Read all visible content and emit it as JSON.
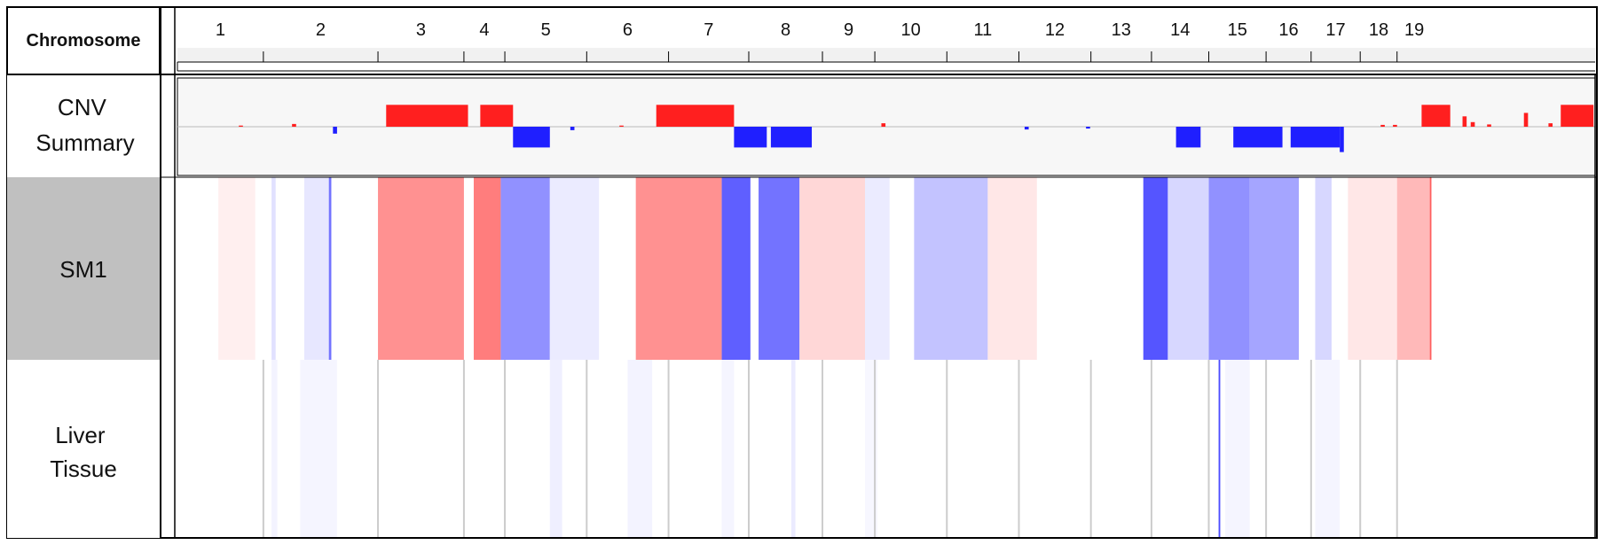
{
  "chart_data": {
    "type": "heatmap",
    "x_axis_title": "Chromosome",
    "chromosomes": [
      {
        "label": "1",
        "start": 0,
        "end": 1.05
      },
      {
        "label": "2",
        "start": 1.05,
        "end": 2.45
      },
      {
        "label": "3",
        "start": 2.45,
        "end": 3.5
      },
      {
        "label": "4",
        "start": 3.5,
        "end": 4.0
      },
      {
        "label": "5",
        "start": 4.0,
        "end": 5.0
      },
      {
        "label": "6",
        "start": 5.0,
        "end": 6.0
      },
      {
        "label": "7",
        "start": 6.0,
        "end": 6.98
      },
      {
        "label": "8",
        "start": 6.98,
        "end": 7.88
      },
      {
        "label": "9",
        "start": 7.88,
        "end": 8.52
      },
      {
        "label": "10",
        "start": 8.52,
        "end": 9.4
      },
      {
        "label": "11",
        "start": 9.4,
        "end": 10.28
      },
      {
        "label": "12",
        "start": 10.28,
        "end": 11.16
      },
      {
        "label": "13",
        "start": 11.16,
        "end": 11.9
      },
      {
        "label": "14",
        "start": 11.9,
        "end": 12.6
      },
      {
        "label": "15",
        "start": 12.6,
        "end": 13.3
      },
      {
        "label": "16",
        "start": 13.3,
        "end": 13.85
      },
      {
        "label": "17",
        "start": 13.85,
        "end": 14.45
      },
      {
        "label": "18",
        "start": 14.45,
        "end": 14.9
      },
      {
        "label": "19",
        "start": 14.9,
        "end": 15.32
      }
    ],
    "genome_range": [
      0,
      15.32
    ],
    "tracks": [
      {
        "name": "CNV\nSummary",
        "kind": "cnv",
        "highlighted": false
      },
      {
        "name": "SM1",
        "kind": "heatmap",
        "highlighted": true
      },
      {
        "name": "Liver\nTissue",
        "kind": "heatmap",
        "highlighted": false
      }
    ],
    "cnv_ylim": [
      -1,
      1
    ],
    "cnv_summary": [
      {
        "start": 0.75,
        "end": 0.8,
        "value": 0.05
      },
      {
        "start": 1.4,
        "end": 1.45,
        "value": 0.12
      },
      {
        "start": 1.9,
        "end": 1.95,
        "value": -0.3
      },
      {
        "start": 2.55,
        "end": 3.55,
        "value": 0.95
      },
      {
        "start": 3.7,
        "end": 4.1,
        "value": 0.95
      },
      {
        "start": 4.1,
        "end": 4.55,
        "value": -0.9
      },
      {
        "start": 4.8,
        "end": 4.85,
        "value": -0.15
      },
      {
        "start": 5.4,
        "end": 5.45,
        "value": 0.05
      },
      {
        "start": 5.85,
        "end": 6.8,
        "value": 0.95
      },
      {
        "start": 6.8,
        "end": 7.2,
        "value": -0.9
      },
      {
        "start": 7.25,
        "end": 7.75,
        "value": -0.9
      },
      {
        "start": 8.6,
        "end": 8.65,
        "value": 0.15
      },
      {
        "start": 10.35,
        "end": 10.4,
        "value": -0.12
      },
      {
        "start": 11.1,
        "end": 11.15,
        "value": -0.08
      },
      {
        "start": 12.2,
        "end": 12.5,
        "value": -0.9
      },
      {
        "start": 12.9,
        "end": 13.5,
        "value": -0.9
      },
      {
        "start": 13.6,
        "end": 14.2,
        "value": -0.9
      },
      {
        "start": 14.2,
        "end": 14.25,
        "value": -1.1
      },
      {
        "start": 14.7,
        "end": 14.75,
        "value": 0.08
      },
      {
        "start": 14.85,
        "end": 14.9,
        "value": 0.08
      },
      {
        "start": 15.2,
        "end": 15.55,
        "value": 0.95
      },
      {
        "start": 15.7,
        "end": 15.75,
        "value": 0.45
      },
      {
        "start": 15.8,
        "end": 15.85,
        "value": 0.2
      },
      {
        "start": 16.0,
        "end": 16.05,
        "value": 0.1
      },
      {
        "start": 16.45,
        "end": 16.5,
        "value": 0.6
      },
      {
        "start": 16.75,
        "end": 16.8,
        "value": 0.15
      },
      {
        "start": 16.9,
        "end": 17.3,
        "value": 0.95
      }
    ],
    "colors": {
      "gain": "#ff1f1f",
      "loss": "#1f1fff",
      "label_highlight": "#c0c0c0",
      "grid": "#cccccc"
    },
    "sm1": [
      {
        "start": 0.5,
        "end": 0.95,
        "value": 0.08
      },
      {
        "start": 1.15,
        "end": 1.2,
        "value": -0.15
      },
      {
        "start": 1.55,
        "end": 1.85,
        "value": -0.12
      },
      {
        "start": 1.85,
        "end": 1.88,
        "value": -0.7
      },
      {
        "start": 2.45,
        "end": 3.5,
        "value": 0.55
      },
      {
        "start": 3.62,
        "end": 3.95,
        "value": 0.65
      },
      {
        "start": 3.95,
        "end": 4.55,
        "value": -0.55
      },
      {
        "start": 4.55,
        "end": 5.15,
        "value": -0.1
      },
      {
        "start": 5.6,
        "end": 6.65,
        "value": 0.55
      },
      {
        "start": 6.65,
        "end": 7.0,
        "value": -0.8
      },
      {
        "start": 7.1,
        "end": 7.6,
        "value": -0.7
      },
      {
        "start": 7.6,
        "end": 8.4,
        "value": 0.2
      },
      {
        "start": 8.4,
        "end": 8.7,
        "value": -0.1
      },
      {
        "start": 9.0,
        "end": 9.9,
        "value": -0.3
      },
      {
        "start": 9.9,
        "end": 10.5,
        "value": 0.12
      },
      {
        "start": 11.8,
        "end": 12.1,
        "value": -0.85
      },
      {
        "start": 12.1,
        "end": 12.6,
        "value": -0.2
      },
      {
        "start": 12.6,
        "end": 13.1,
        "value": -0.55
      },
      {
        "start": 13.1,
        "end": 13.7,
        "value": -0.45
      },
      {
        "start": 13.9,
        "end": 14.1,
        "value": -0.2
      },
      {
        "start": 14.3,
        "end": 14.9,
        "value": 0.12
      },
      {
        "start": 14.9,
        "end": 15.3,
        "value": 0.35
      },
      {
        "start": 15.3,
        "end": 15.32,
        "value": 0.8
      }
    ],
    "liver_tissue": [
      {
        "start": 1.15,
        "end": 1.22,
        "value": -0.06
      },
      {
        "start": 1.5,
        "end": 1.95,
        "value": -0.05
      },
      {
        "start": 4.55,
        "end": 4.7,
        "value": -0.08
      },
      {
        "start": 5.5,
        "end": 5.8,
        "value": -0.06
      },
      {
        "start": 6.65,
        "end": 6.8,
        "value": -0.05
      },
      {
        "start": 7.5,
        "end": 7.55,
        "value": -0.1
      },
      {
        "start": 8.4,
        "end": 8.55,
        "value": -0.04
      },
      {
        "start": 12.72,
        "end": 12.74,
        "value": -0.9
      },
      {
        "start": 12.8,
        "end": 13.1,
        "value": -0.05
      },
      {
        "start": 13.9,
        "end": 14.2,
        "value": -0.05
      }
    ]
  }
}
